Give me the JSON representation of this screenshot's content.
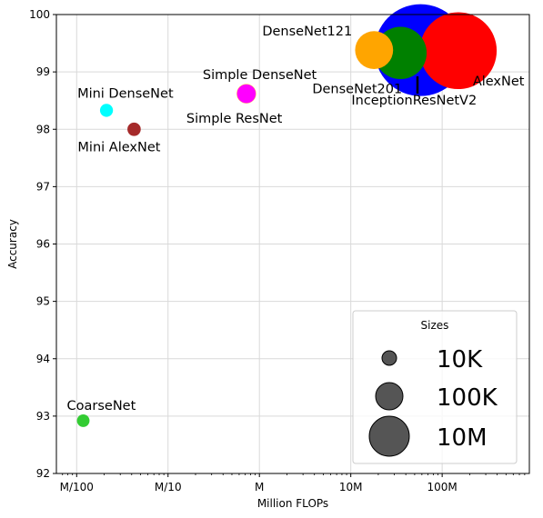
{
  "chart_data": {
    "type": "scatter",
    "title": "",
    "xlabel": "Million FLOPs",
    "ylabel": "Accuracy",
    "xscale": "log",
    "xlim": [
      0.006,
      900
    ],
    "ylim": [
      92,
      100
    ],
    "xticks": [
      {
        "value": 0.01,
        "label": "M/100"
      },
      {
        "value": 0.1,
        "label": "M/10"
      },
      {
        "value": 1,
        "label": "M"
      },
      {
        "value": 10,
        "label": "10M"
      },
      {
        "value": 100,
        "label": "100M"
      }
    ],
    "yticks": [
      92,
      93,
      94,
      95,
      96,
      97,
      98,
      99,
      100
    ],
    "grid": true,
    "points": [
      {
        "name": "CoarseNet",
        "x": 0.0118,
        "y": 92.92,
        "size": 3000,
        "color": "#33cc33"
      },
      {
        "name": "Mini DenseNet",
        "x": 0.0212,
        "y": 98.33,
        "size": 4000,
        "color": "#00ffff"
      },
      {
        "name": "Mini AlexNet",
        "x": 0.0425,
        "y": 98.0,
        "size": 5000,
        "color": "#a52a2a"
      },
      {
        "name": "Simple DenseNet",
        "x": 0.72,
        "y": 98.62,
        "size": 40000,
        "color": "#ffff00"
      },
      {
        "name": "Simple ResNet",
        "x": 0.72,
        "y": 98.62,
        "size": 35000,
        "color": "#ff00ff"
      },
      {
        "name": "AlexNet",
        "x": 150,
        "y": 99.37,
        "size": 2000000,
        "color": "#ff0000"
      },
      {
        "name": "InceptionResNetV2",
        "x": 58,
        "y": 99.38,
        "size": 3000000,
        "color": "#0000ff"
      },
      {
        "name": "DenseNet201",
        "x": 35,
        "y": 99.33,
        "size": 800000,
        "color": "#008000"
      },
      {
        "name": "DenseNet121",
        "x": 18,
        "y": 99.38,
        "size": 350000,
        "color": "#ffa500"
      }
    ],
    "legend": {
      "title": "Sizes",
      "placement": "lower-right",
      "entries": [
        {
          "label": "10K",
          "size": 10000
        },
        {
          "label": "100K",
          "size": 100000
        },
        {
          "label": "10M",
          "size": 10000000
        }
      ],
      "color": "#555555"
    }
  }
}
